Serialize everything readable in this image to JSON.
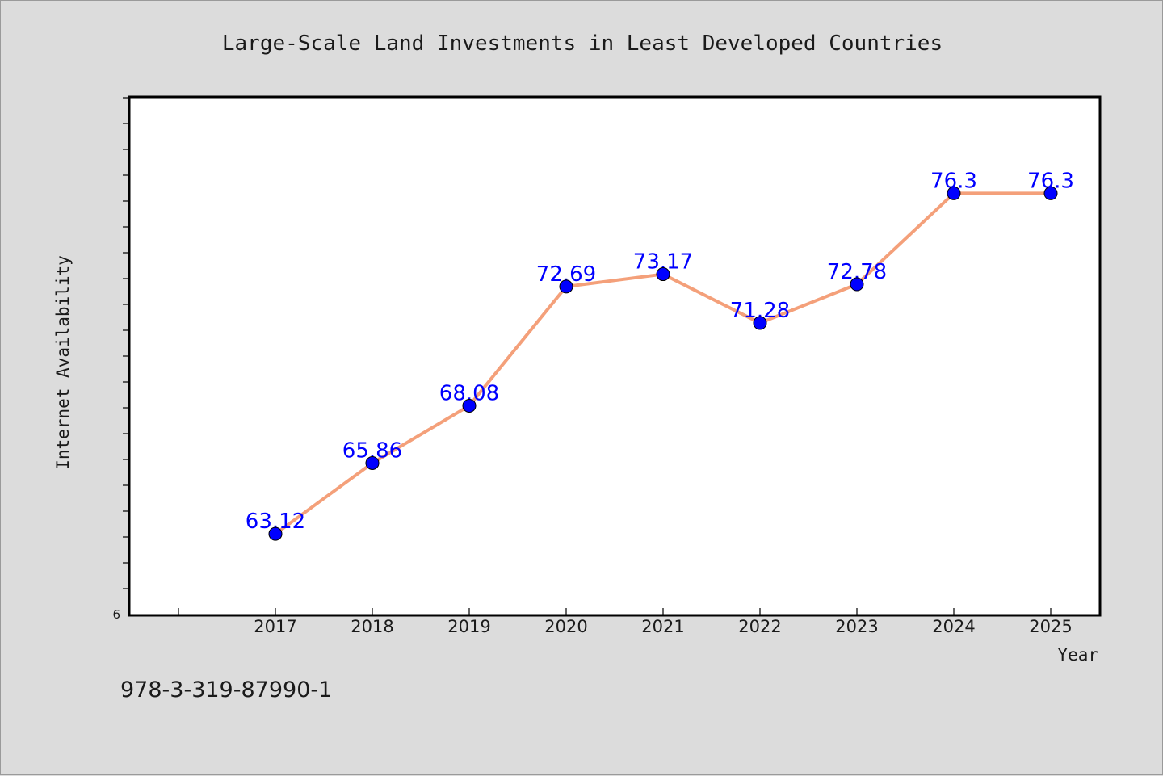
{
  "chart_data": {
    "type": "line",
    "title": "Large-Scale Land Investments in Least Developed Countries",
    "xlabel": "Year",
    "ylabel": "Internet Availability",
    "categories": [
      "2017",
      "2018",
      "2019",
      "2020",
      "2021",
      "2022",
      "2023",
      "2024",
      "2025"
    ],
    "series": [
      {
        "values": [
          63.12,
          65.86,
          68.08,
          72.69,
          73.17,
          71.28,
          72.78,
          76.3,
          76.3
        ],
        "data_labels": [
          "63.12",
          "65.86",
          "68.08",
          "72.69",
          "73.17",
          "71.28",
          "72.78",
          "76.3",
          "76.3"
        ],
        "line_color": "#f4a07a",
        "marker_color": "#0000ff"
      }
    ],
    "y_tick_labels": [
      "6"
    ],
    "ylim": [
      60,
      80
    ],
    "grid": false,
    "legend": "none"
  },
  "footer_text": "978-3-319-87990-1"
}
